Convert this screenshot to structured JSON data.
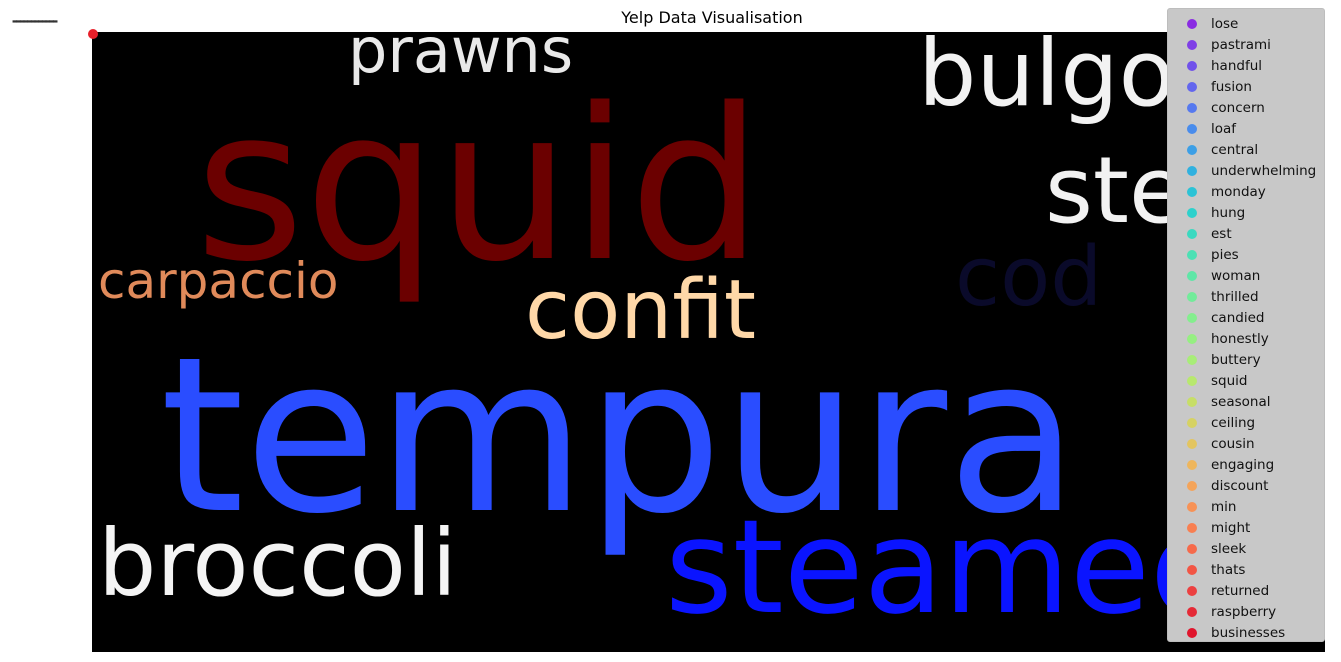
{
  "chart_data": {
    "type": "scatter",
    "title": "Yelp Data Visualisation",
    "background_image": "word-cloud",
    "cloud_words": [
      {
        "text": "squid",
        "color": "#6b0000"
      },
      {
        "text": "prawns",
        "color": "#e9e9e9"
      },
      {
        "text": "bulgogi",
        "color": "#f2f2f2"
      },
      {
        "text": "stew",
        "color": "#f2f2f2"
      },
      {
        "text": "cod",
        "color": "#0a0a2a"
      },
      {
        "text": "carpaccio",
        "color": "#e08a5a"
      },
      {
        "text": "confit",
        "color": "#ffd8a8"
      },
      {
        "text": "tempura",
        "color": "#2a4dff"
      },
      {
        "text": "broccoli",
        "color": "#f4f4f4"
      },
      {
        "text": "steamed",
        "color": "#0a14ff"
      }
    ],
    "series": [
      {
        "name": "lose",
        "color": "#8a2be2"
      },
      {
        "name": "pastrami",
        "color": "#7f3fe6"
      },
      {
        "name": "handful",
        "color": "#7051ea"
      },
      {
        "name": "fusion",
        "color": "#6366ee"
      },
      {
        "name": "concern",
        "color": "#5679ef"
      },
      {
        "name": "loaf",
        "color": "#498cec"
      },
      {
        "name": "central",
        "color": "#3c9fe6"
      },
      {
        "name": "underwhelming",
        "color": "#30b1df"
      },
      {
        "name": "monday",
        "color": "#2bc3d6"
      },
      {
        "name": "hung",
        "color": "#2dd1cc"
      },
      {
        "name": "est",
        "color": "#3ad9c0"
      },
      {
        "name": "pies",
        "color": "#4ce0b4"
      },
      {
        "name": "woman",
        "color": "#5fe6a7"
      },
      {
        "name": "thrilled",
        "color": "#72eb9a"
      },
      {
        "name": "candied",
        "color": "#84ee8e"
      },
      {
        "name": "honestly",
        "color": "#96ef82"
      },
      {
        "name": "buttery",
        "color": "#a8ed78"
      },
      {
        "name": "squid",
        "color": "#b8e86e"
      },
      {
        "name": "seasonal",
        "color": "#c7de67"
      },
      {
        "name": "ceiling",
        "color": "#d6d263"
      },
      {
        "name": "cousin",
        "color": "#e3c560"
      },
      {
        "name": "engaging",
        "color": "#eeb65d"
      },
      {
        "name": "discount",
        "color": "#f4a45a"
      },
      {
        "name": "min",
        "color": "#f79256"
      },
      {
        "name": "might",
        "color": "#f87f51"
      },
      {
        "name": "sleek",
        "color": "#f66a4b"
      },
      {
        "name": "thats",
        "color": "#f25544"
      },
      {
        "name": "returned",
        "color": "#ec4040"
      },
      {
        "name": "raspberry",
        "color": "#e52a36"
      },
      {
        "name": "businesses",
        "color": "#e0152c"
      }
    ]
  }
}
